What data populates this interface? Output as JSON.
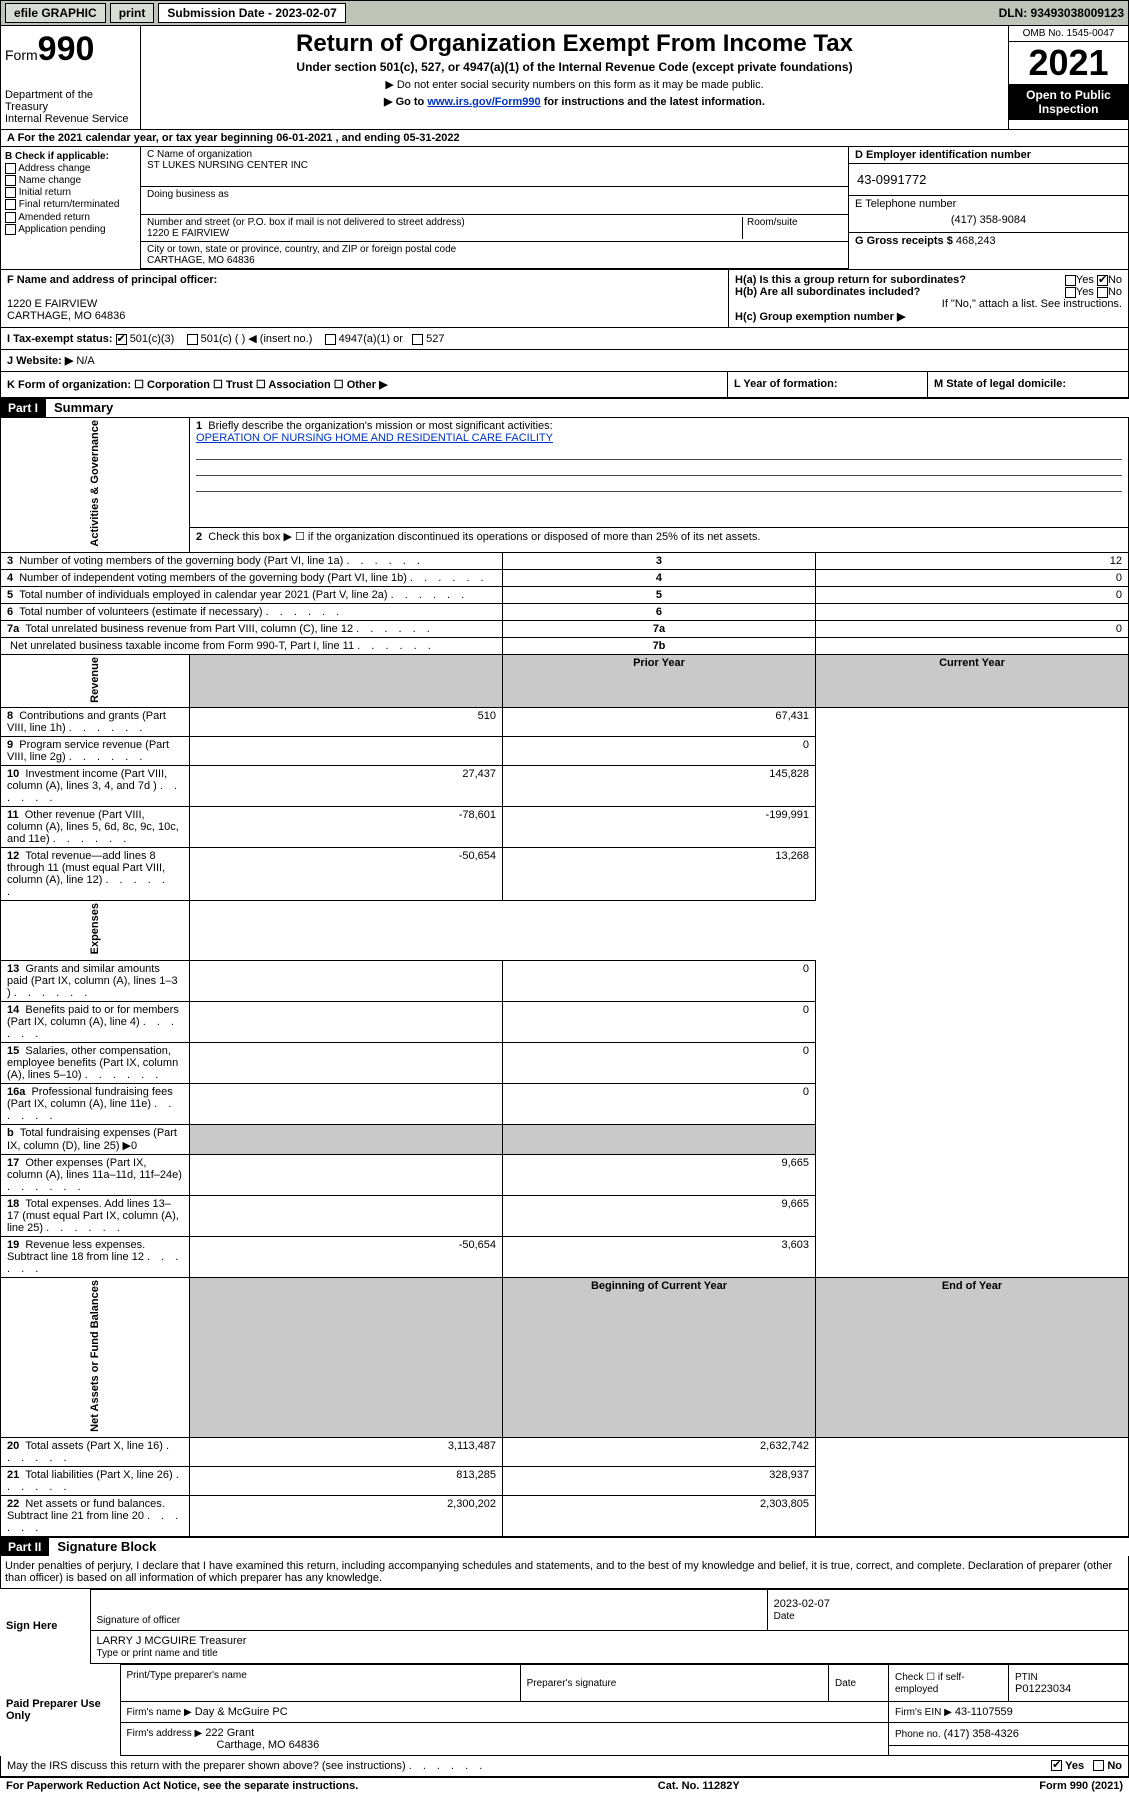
{
  "topbar": {
    "efile": "efile GRAPHIC",
    "print": "print",
    "sub_label": "Submission Date - 2023-02-07",
    "dln": "DLN: 93493038009123"
  },
  "header": {
    "form_word": "Form",
    "form_num": "990",
    "title": "Return of Organization Exempt From Income Tax",
    "subtitle": "Under section 501(c), 527, or 4947(a)(1) of the Internal Revenue Code (except private foundations)",
    "note1": "▶ Do not enter social security numbers on this form as it may be made public.",
    "note2_pre": "▶ Go to ",
    "note2_link": "www.irs.gov/Form990",
    "note2_post": " for instructions and the latest information.",
    "dept": "Department of the Treasury\nInternal Revenue Service",
    "omb": "OMB No. 1545-0047",
    "year": "2021",
    "open": "Open to Public Inspection"
  },
  "period": "A For the 2021 calendar year, or tax year beginning 06-01-2021   , and ending 05-31-2022",
  "boxB": {
    "title": "B Check if applicable:",
    "items": [
      "Address change",
      "Name change",
      "Initial return",
      "Final return/terminated",
      "Amended return",
      "Application pending"
    ]
  },
  "boxC": {
    "label": "C Name of organization",
    "name": "ST LUKES NURSING CENTER INC",
    "dba": "Doing business as",
    "street_label": "Number and street (or P.O. box if mail is not delivered to street address)",
    "room": "Room/suite",
    "street": "1220 E FAIRVIEW",
    "city_label": "City or town, state or province, country, and ZIP or foreign postal code",
    "city": "CARTHAGE, MO  64836"
  },
  "boxD": {
    "label": "D Employer identification number",
    "ein": "43-0991772"
  },
  "boxE": {
    "label": "E Telephone number",
    "phone": "(417) 358-9084"
  },
  "boxG": {
    "label": "G Gross receipts $",
    "val": "468,243"
  },
  "boxF": {
    "label": "F Name and address of principal officer:",
    "line1": "1220 E FAIRVIEW",
    "line2": "CARTHAGE, MO  64836"
  },
  "boxH": {
    "a": "H(a)  Is this a group return for subordinates?",
    "b": "H(b)  Are all subordinates included?",
    "note": "If \"No,\" attach a list. See instructions.",
    "c": "H(c)  Group exemption number ▶",
    "yes": "Yes",
    "no": "No"
  },
  "rowI": {
    "label": "I   Tax-exempt status:",
    "o1": "501(c)(3)",
    "o2": "501(c) (  ) ◀ (insert no.)",
    "o3": "4947(a)(1) or",
    "o4": "527"
  },
  "rowJ": {
    "label": "J   Website: ▶",
    "val": "N/A"
  },
  "rowK": "K Form of organization:    ☐ Corporation   ☐ Trust   ☐ Association   ☐ Other ▶",
  "rowL": "L Year of formation:",
  "rowM": "M State of legal domicile:",
  "part1": {
    "hdr": "Part I",
    "title": "Summary"
  },
  "summary": {
    "l1": "Briefly describe the organization's mission or most significant activities:",
    "l1v": "OPERATION OF NURSING HOME AND RESIDENTIAL CARE FACILITY",
    "l2": "Check this box ▶ ☐  if the organization discontinued its operations or disposed of more than 25% of its net assets.",
    "rows_simple": [
      {
        "n": "3",
        "t": "Number of voting members of the governing body (Part VI, line 1a)",
        "box": "3",
        "v": "12"
      },
      {
        "n": "4",
        "t": "Number of independent voting members of the governing body (Part VI, line 1b)",
        "box": "4",
        "v": "0"
      },
      {
        "n": "5",
        "t": "Total number of individuals employed in calendar year 2021 (Part V, line 2a)",
        "box": "5",
        "v": "0"
      },
      {
        "n": "6",
        "t": "Total number of volunteers (estimate if necessary)",
        "box": "6",
        "v": ""
      },
      {
        "n": "7a",
        "t": "Total unrelated business revenue from Part VIII, column (C), line 12",
        "box": "7a",
        "v": "0"
      },
      {
        "n": "",
        "t": "Net unrelated business taxable income from Form 990-T, Part I, line 11",
        "box": "7b",
        "v": ""
      }
    ],
    "hdr_prior": "Prior Year",
    "hdr_curr": "Current Year",
    "revenue": [
      {
        "n": "8",
        "t": "Contributions and grants (Part VIII, line 1h)",
        "p": "510",
        "c": "67,431"
      },
      {
        "n": "9",
        "t": "Program service revenue (Part VIII, line 2g)",
        "p": "",
        "c": "0"
      },
      {
        "n": "10",
        "t": "Investment income (Part VIII, column (A), lines 3, 4, and 7d )",
        "p": "27,437",
        "c": "145,828"
      },
      {
        "n": "11",
        "t": "Other revenue (Part VIII, column (A), lines 5, 6d, 8c, 9c, 10c, and 11e)",
        "p": "-78,601",
        "c": "-199,991"
      },
      {
        "n": "12",
        "t": "Total revenue—add lines 8 through 11 (must equal Part VIII, column (A), line 12)",
        "p": "-50,654",
        "c": "13,268"
      }
    ],
    "expenses": [
      {
        "n": "13",
        "t": "Grants and similar amounts paid (Part IX, column (A), lines 1–3 )",
        "p": "",
        "c": "0"
      },
      {
        "n": "14",
        "t": "Benefits paid to or for members (Part IX, column (A), line 4)",
        "p": "",
        "c": "0"
      },
      {
        "n": "15",
        "t": "Salaries, other compensation, employee benefits (Part IX, column (A), lines 5–10)",
        "p": "",
        "c": "0"
      },
      {
        "n": "16a",
        "t": "Professional fundraising fees (Part IX, column (A), line 11e)",
        "p": "",
        "c": "0"
      },
      {
        "n": "b",
        "t": "Total fundraising expenses (Part IX, column (D), line 25) ▶0",
        "p": "shade",
        "c": "shade"
      },
      {
        "n": "17",
        "t": "Other expenses (Part IX, column (A), lines 11a–11d, 11f–24e)",
        "p": "",
        "c": "9,665"
      },
      {
        "n": "18",
        "t": "Total expenses. Add lines 13–17 (must equal Part IX, column (A), line 25)",
        "p": "",
        "c": "9,665"
      },
      {
        "n": "19",
        "t": "Revenue less expenses. Subtract line 18 from line 12",
        "p": "-50,654",
        "c": "3,603"
      }
    ],
    "hdr_begin": "Beginning of Current Year",
    "hdr_end": "End of Year",
    "netassets": [
      {
        "n": "20",
        "t": "Total assets (Part X, line 16)",
        "p": "3,113,487",
        "c": "2,632,742"
      },
      {
        "n": "21",
        "t": "Total liabilities (Part X, line 26)",
        "p": "813,285",
        "c": "328,937"
      },
      {
        "n": "22",
        "t": "Net assets or fund balances. Subtract line 21 from line 20",
        "p": "2,300,202",
        "c": "2,303,805"
      }
    ],
    "tabs": {
      "ag": "Activities & Governance",
      "rev": "Revenue",
      "exp": "Expenses",
      "na": "Net Assets or Fund Balances"
    }
  },
  "part2": {
    "hdr": "Part II",
    "title": "Signature Block"
  },
  "sig": {
    "decl": "Under penalties of perjury, I declare that I have examined this return, including accompanying schedules and statements, and to the best of my knowledge and belief, it is true, correct, and complete. Declaration of preparer (other than officer) is based on all information of which preparer has any knowledge.",
    "sign_here": "Sign Here",
    "sig_officer": "Signature of officer",
    "date": "Date",
    "date_val": "2023-02-07",
    "officer_name": "LARRY J MCGUIRE  Treasurer",
    "type_name": "Type or print name and title",
    "paid": "Paid Preparer Use Only",
    "prep_name": "Print/Type preparer's name",
    "prep_sig": "Preparer's signature",
    "check_se": "Check ☐ if self-employed",
    "ptin_l": "PTIN",
    "ptin": "P01223034",
    "firm_name_l": "Firm's name   ▶",
    "firm_name": "Day & McGuire PC",
    "firm_ein_l": "Firm's EIN ▶",
    "firm_ein": "43-1107559",
    "firm_addr_l": "Firm's address ▶",
    "firm_addr1": "222 Grant",
    "firm_addr2": "Carthage, MO  64836",
    "phone_l": "Phone no.",
    "phone": "(417) 358-4326",
    "discuss": "May the IRS discuss this return with the preparer shown above? (see instructions)",
    "yes": "Yes",
    "no": "No"
  },
  "footer": {
    "left": "For Paperwork Reduction Act Notice, see the separate instructions.",
    "mid": "Cat. No. 11282Y",
    "right": "Form 990 (2021)"
  }
}
